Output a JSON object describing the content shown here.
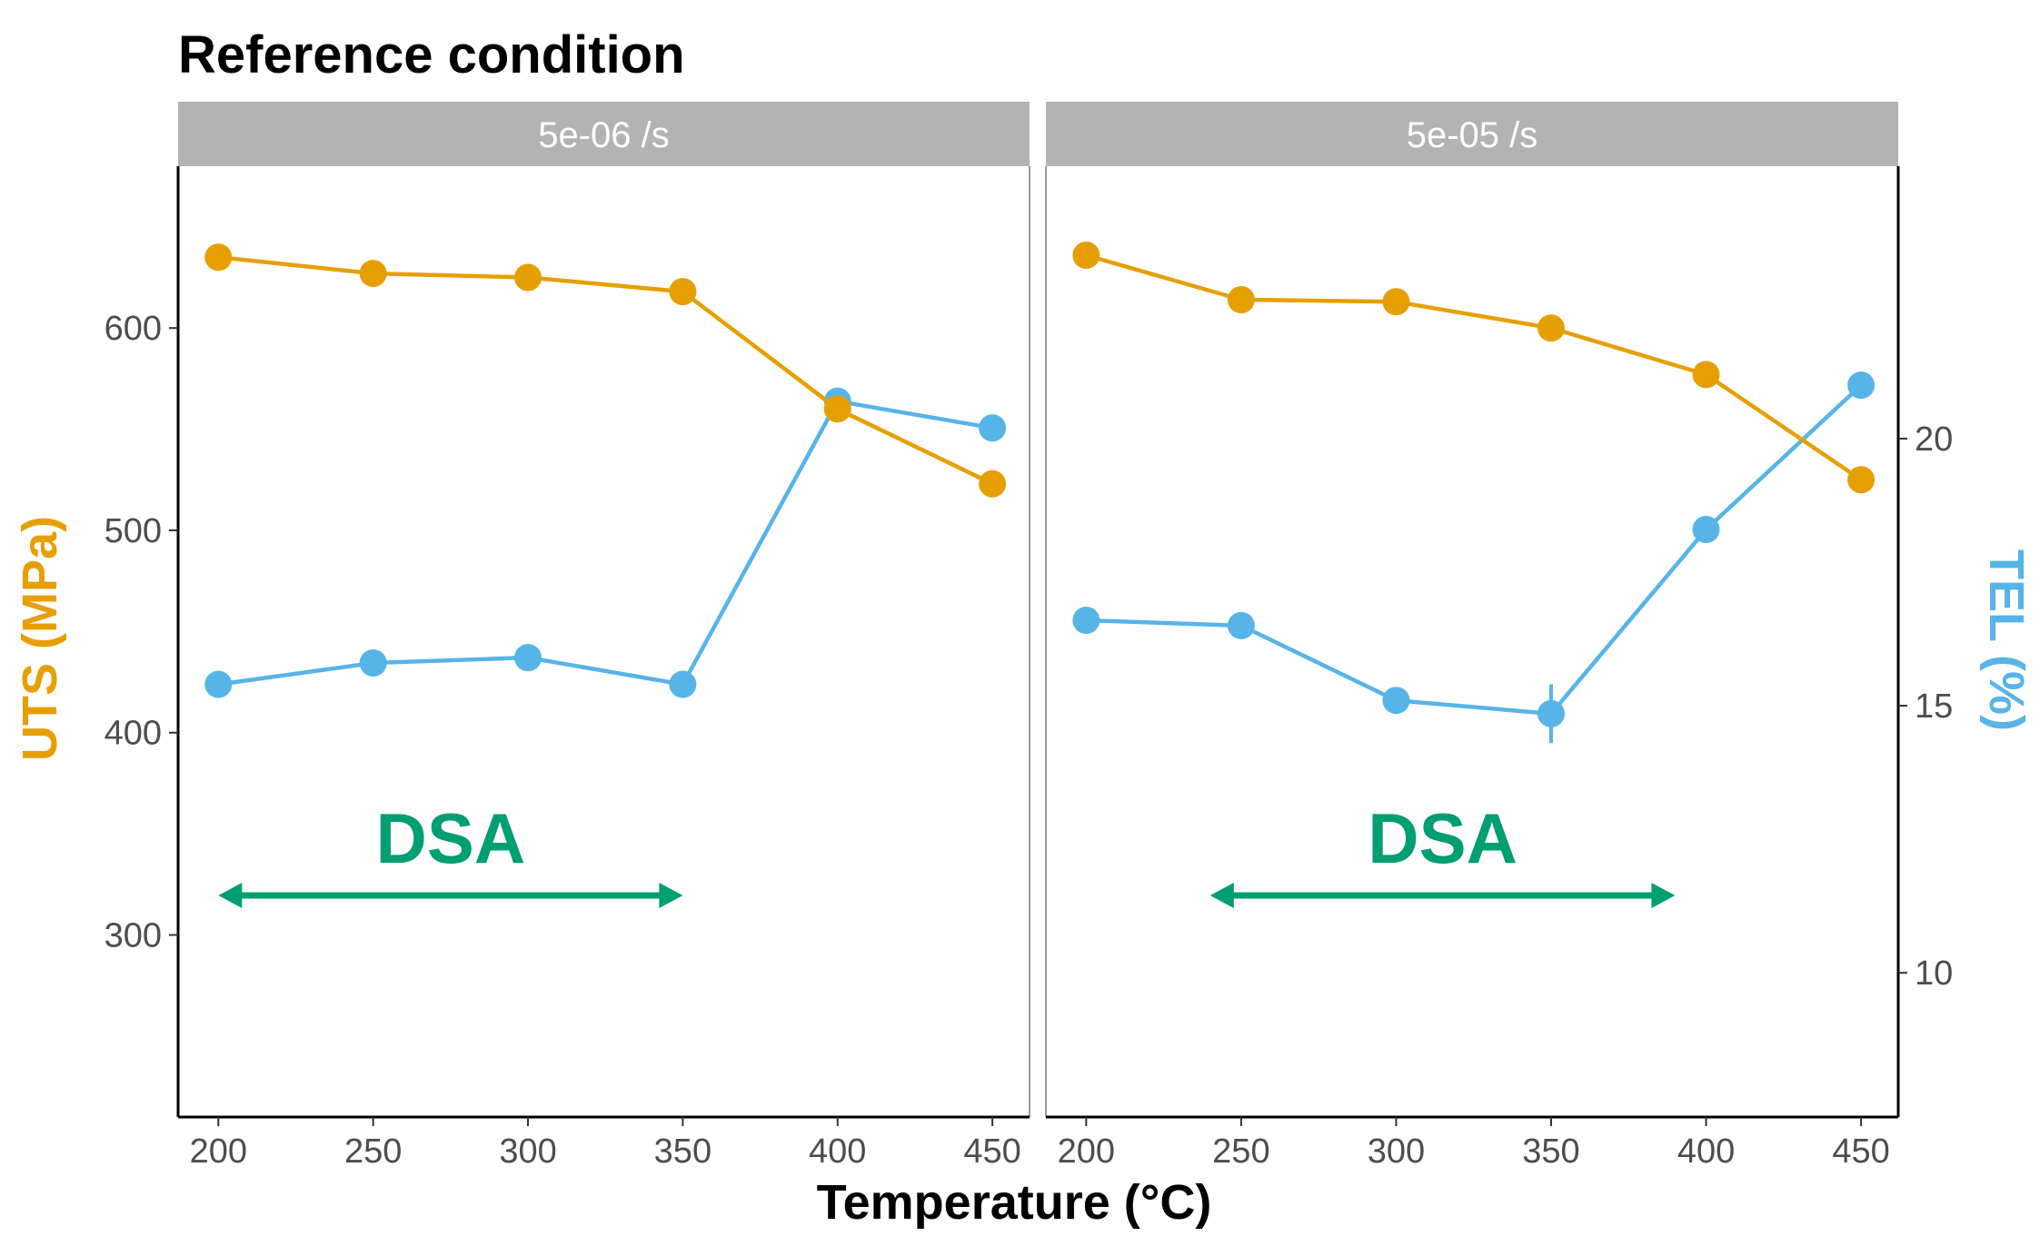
{
  "chart_data": {
    "type": "line",
    "title": "Reference condition",
    "xlabel": "Temperature (°C)",
    "ylabel_left": "UTS (MPa)",
    "ylabel_right": "TEL (%)",
    "x": [
      200,
      250,
      300,
      350,
      400,
      450
    ],
    "x_ticks": [
      "200",
      "250",
      "300",
      "350",
      "400",
      "450"
    ],
    "xlim": [
      187,
      462
    ],
    "ylim_left": [
      210,
      680
    ],
    "ylim_right": [
      7.3,
      25.1
    ],
    "y_ticks_left": [
      "300",
      "400",
      "500",
      "600"
    ],
    "y_ticks_right": [
      "10",
      "15",
      "20"
    ],
    "colors": {
      "uts": "#E69F00",
      "tel": "#56B4E9",
      "dsa": "#009E73",
      "strip": "#B3B3B3"
    },
    "panels": [
      {
        "strip": "5e-06 /s",
        "series": [
          {
            "name": "UTS (MPa)",
            "axis": "left",
            "values": [
              635,
              627,
              625,
              618,
              560,
              523
            ]
          },
          {
            "name": "TEL (%)",
            "axis": "right",
            "values": [
              15.4,
              15.8,
              15.9,
              15.4,
              20.7,
              20.2
            ]
          }
        ],
        "annotation": {
          "label": "DSA",
          "range": [
            200,
            350
          ]
        }
      },
      {
        "strip": "5e-05 /s",
        "series": [
          {
            "name": "UTS (MPa)",
            "axis": "left",
            "values": [
              636,
              614,
              613,
              600,
              577,
              525
            ]
          },
          {
            "name": "TEL (%)",
            "axis": "right",
            "values": [
              16.6,
              16.5,
              15.1,
              14.85,
              18.3,
              21.0
            ],
            "error": [
              0,
              0,
              0,
              0.55,
              0,
              0
            ]
          }
        ],
        "annotation": {
          "label": "DSA",
          "range": [
            240,
            390
          ]
        }
      }
    ]
  }
}
